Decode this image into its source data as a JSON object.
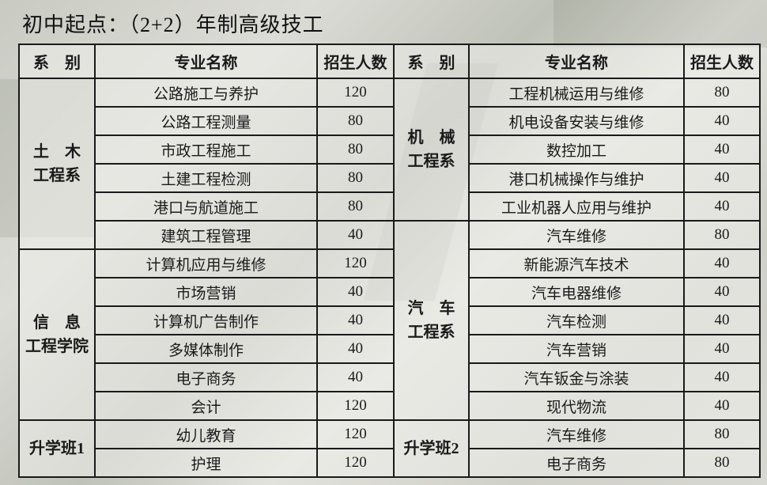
{
  "title": "初中起点：（2+2）年制高级技工",
  "headers": {
    "dept": "系　别",
    "major": "专业名称",
    "count": "招生人数"
  },
  "left": {
    "groups": [
      {
        "name1": "土　木",
        "name2": "工程系",
        "rows": [
          {
            "major": "公路施工与养护",
            "count": "120"
          },
          {
            "major": "公路工程测量",
            "count": "80"
          },
          {
            "major": "市政工程施工",
            "count": "80"
          },
          {
            "major": "土建工程检测",
            "count": "80"
          },
          {
            "major": "港口与航道施工",
            "count": "80"
          },
          {
            "major": "建筑工程管理",
            "count": "40"
          }
        ]
      },
      {
        "name1": "信　息",
        "name2": "工程学院",
        "rows": [
          {
            "major": "计算机应用与维修",
            "count": "120"
          },
          {
            "major": "市场营销",
            "count": "40"
          },
          {
            "major": "计算机广告制作",
            "count": "40"
          },
          {
            "major": "多媒体制作",
            "count": "40"
          },
          {
            "major": "电子商务",
            "count": "40"
          },
          {
            "major": "会计",
            "count": "120"
          }
        ]
      },
      {
        "name1": "升学班1",
        "name2": "",
        "rows": [
          {
            "major": "幼儿教育",
            "count": "120"
          },
          {
            "major": "护理",
            "count": "120"
          }
        ]
      }
    ]
  },
  "right": {
    "groups": [
      {
        "name1": "机　械",
        "name2": "工程系",
        "rows": [
          {
            "major": "工程机械运用与维修",
            "count": "80"
          },
          {
            "major": "机电设备安装与维修",
            "count": "40"
          },
          {
            "major": "数控加工",
            "count": "40"
          },
          {
            "major": "港口机械操作与维护",
            "count": "40"
          },
          {
            "major": "工业机器人应用与维护",
            "count": "40"
          }
        ]
      },
      {
        "name1": "汽　车",
        "name2": "工程系",
        "rows": [
          {
            "major": "汽车维修",
            "count": "80"
          },
          {
            "major": "新能源汽车技术",
            "count": "40"
          },
          {
            "major": "汽车电器维修",
            "count": "40"
          },
          {
            "major": "汽车检测",
            "count": "40"
          },
          {
            "major": "汽车营销",
            "count": "40"
          },
          {
            "major": "汽车钣金与涂装",
            "count": "40"
          },
          {
            "major": "现代物流",
            "count": "40"
          }
        ]
      },
      {
        "name1": "升学班2",
        "name2": "",
        "rows": [
          {
            "major": "汽车维修",
            "count": "80"
          },
          {
            "major": "电子商务",
            "count": "80"
          }
        ]
      }
    ]
  }
}
